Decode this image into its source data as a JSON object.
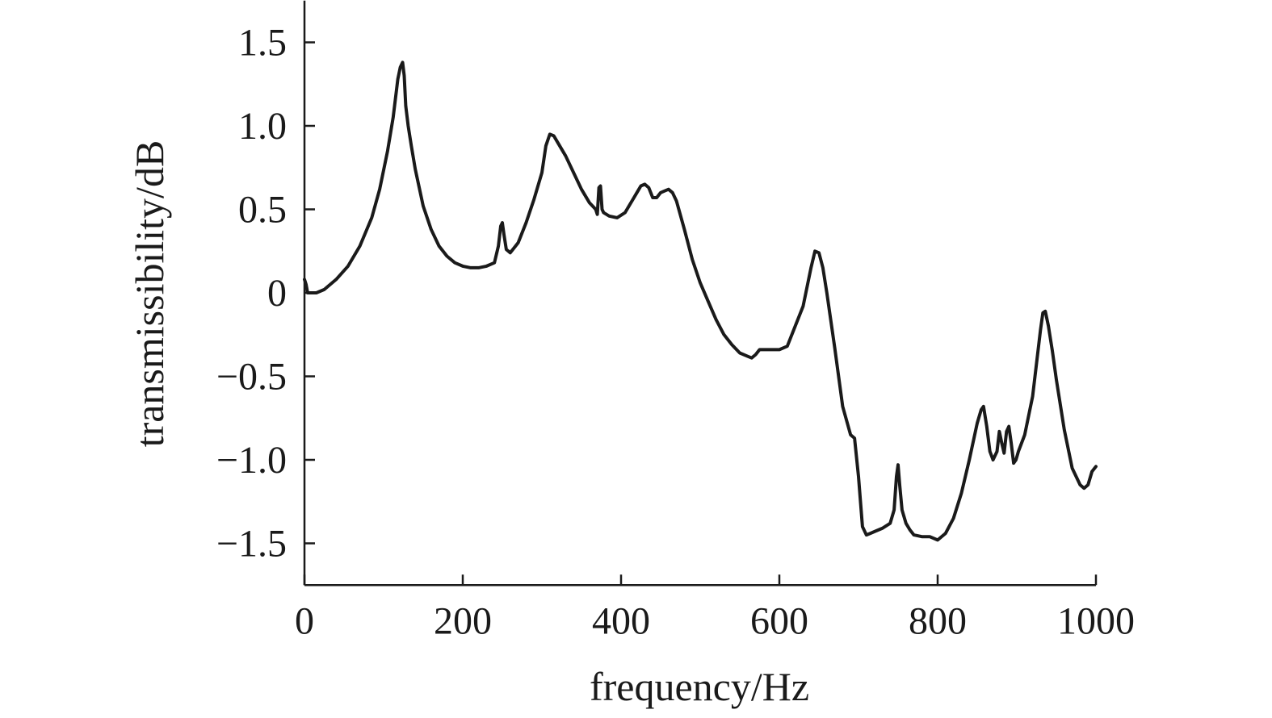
{
  "chart_data": {
    "type": "line",
    "title": "",
    "xlabel": "frequency/Hz",
    "ylabel": "transmissibility/dB",
    "xlim": [
      0,
      1000
    ],
    "ylim": [
      -1.75,
      1.75
    ],
    "xticks": [
      0,
      200,
      400,
      600,
      800,
      1000
    ],
    "xtick_labels": [
      "0",
      "200",
      "400",
      "600",
      "800",
      "1000"
    ],
    "yticks": [
      1.5,
      1.0,
      0.5,
      0,
      -0.5,
      -1.0,
      -1.5
    ],
    "ytick_labels": [
      "1.5",
      "1.0",
      "0.5",
      "0",
      "−0.5",
      "−1.0",
      "−1.5"
    ],
    "grid": false,
    "legend": "none",
    "line_color": "#1a1a1a",
    "axis_color": "#1a1a1a",
    "series": [
      {
        "x": [
          0,
          2,
          4,
          8,
          15,
          25,
          40,
          55,
          70,
          85,
          95,
          105,
          112,
          118,
          121,
          124,
          126,
          128,
          131,
          135,
          140,
          150,
          160,
          170,
          180,
          190,
          200,
          210,
          220,
          230,
          240,
          245,
          248,
          250,
          252,
          255,
          260,
          270,
          280,
          290,
          300,
          305,
          310,
          315,
          320,
          330,
          340,
          350,
          360,
          368,
          370,
          372,
          374,
          376,
          378,
          385,
          395,
          405,
          415,
          420,
          425,
          430,
          435,
          440,
          445,
          450,
          455,
          460,
          465,
          470,
          480,
          490,
          500,
          510,
          520,
          530,
          540,
          550,
          560,
          565,
          570,
          575,
          580,
          590,
          600,
          610,
          620,
          630,
          640,
          645,
          650,
          655,
          660,
          670,
          680,
          690,
          695,
          700,
          705,
          710,
          715,
          720,
          730,
          740,
          745,
          748,
          750,
          752,
          755,
          760,
          765,
          770,
          780,
          790,
          800,
          810,
          820,
          830,
          840,
          850,
          855,
          858,
          862,
          866,
          870,
          875,
          878,
          881,
          884,
          887,
          890,
          893,
          896,
          899,
          902,
          910,
          920,
          925,
          930,
          933,
          936,
          940,
          945,
          950,
          960,
          970,
          980,
          985,
          990,
          995,
          1000
        ],
        "values": [
          0.08,
          0.05,
          0.0,
          0.0,
          0.0,
          0.02,
          0.08,
          0.16,
          0.28,
          0.45,
          0.62,
          0.85,
          1.05,
          1.28,
          1.35,
          1.38,
          1.3,
          1.12,
          1.0,
          0.88,
          0.74,
          0.52,
          0.38,
          0.28,
          0.22,
          0.18,
          0.16,
          0.15,
          0.15,
          0.16,
          0.18,
          0.28,
          0.4,
          0.42,
          0.35,
          0.26,
          0.24,
          0.3,
          0.42,
          0.56,
          0.72,
          0.88,
          0.95,
          0.94,
          0.9,
          0.82,
          0.72,
          0.62,
          0.54,
          0.5,
          0.47,
          0.63,
          0.64,
          0.5,
          0.48,
          0.46,
          0.45,
          0.48,
          0.56,
          0.6,
          0.64,
          0.65,
          0.63,
          0.57,
          0.57,
          0.6,
          0.61,
          0.62,
          0.6,
          0.55,
          0.38,
          0.2,
          0.06,
          -0.05,
          -0.16,
          -0.25,
          -0.31,
          -0.36,
          -0.38,
          -0.39,
          -0.37,
          -0.34,
          -0.34,
          -0.34,
          -0.34,
          -0.32,
          -0.2,
          -0.08,
          0.15,
          0.25,
          0.24,
          0.15,
          0.0,
          -0.33,
          -0.68,
          -0.85,
          -0.87,
          -1.1,
          -1.4,
          -1.45,
          -1.44,
          -1.43,
          -1.41,
          -1.38,
          -1.3,
          -1.1,
          -1.03,
          -1.15,
          -1.3,
          -1.38,
          -1.42,
          -1.45,
          -1.46,
          -1.46,
          -1.48,
          -1.44,
          -1.35,
          -1.2,
          -1.0,
          -0.78,
          -0.7,
          -0.68,
          -0.8,
          -0.95,
          -1.0,
          -0.95,
          -0.83,
          -0.9,
          -0.96,
          -0.83,
          -0.8,
          -0.9,
          -1.02,
          -1.0,
          -0.95,
          -0.85,
          -0.62,
          -0.42,
          -0.22,
          -0.12,
          -0.11,
          -0.2,
          -0.35,
          -0.52,
          -0.82,
          -1.05,
          -1.15,
          -1.17,
          -1.15,
          -1.07,
          -1.04
        ]
      }
    ]
  }
}
